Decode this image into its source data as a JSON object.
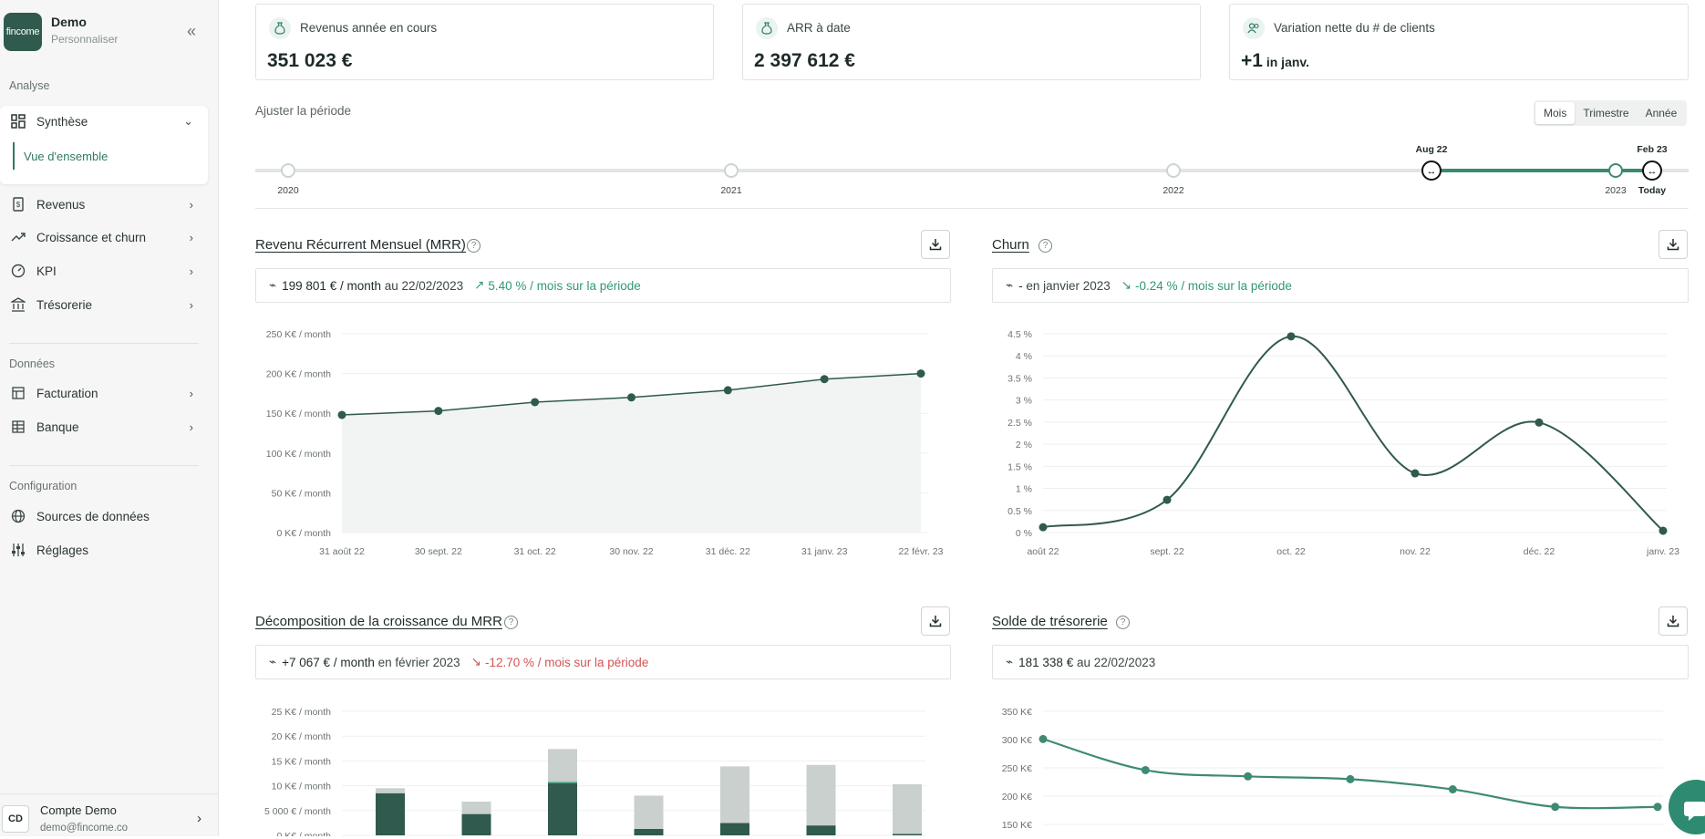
{
  "sidebar": {
    "logo_text": "fincome",
    "company": "Demo",
    "customize": "Personnaliser",
    "sections": {
      "analyse": "Analyse",
      "donnees": "Données",
      "configuration": "Configuration"
    },
    "items": {
      "synthese": "Synthèse",
      "vue_ensemble": "Vue d'ensemble",
      "revenus": "Revenus",
      "croissance": "Croissance et churn",
      "kpi": "KPI",
      "tresorerie": "Trésorerie",
      "facturation": "Facturation",
      "banque": "Banque",
      "sources": "Sources de données",
      "reglages": "Réglages"
    },
    "account": {
      "initials": "CD",
      "name": "Compte Demo",
      "email": "demo@fincome.co"
    }
  },
  "kpis": [
    {
      "label": "Revenus année en cours",
      "value": "351 023 €",
      "suffix": ""
    },
    {
      "label": "ARR à date",
      "value": "2 397 612 €",
      "suffix": ""
    },
    {
      "label": "Variation nette du # de clients",
      "value": "+1",
      "suffix": " in janv."
    }
  ],
  "period": {
    "label": "Ajuster la période",
    "granularity": [
      "Mois",
      "Trimestre",
      "Année"
    ],
    "selected": "Mois",
    "years": [
      "2020",
      "2021",
      "2022",
      "2023",
      "Today"
    ],
    "range_start": "Aug 22",
    "range_end": "Feb 23"
  },
  "panels": {
    "mrr": {
      "title": "Revenu Récurrent Mensuel (MRR)",
      "stat_value": "199 801 € / month",
      "stat_suffix": "au 22/02/2023",
      "stat_change": "5.40 % / mois sur la période"
    },
    "churn": {
      "title": "Churn",
      "stat_value": "-",
      "stat_suffix": "en janvier 2023",
      "stat_change": "-0.24 % / mois sur la période"
    },
    "decomp": {
      "title": "Décomposition de la croissance du MRR",
      "stat_value": "+7 067 € / month",
      "stat_suffix": "en février 2023",
      "stat_change": "-12.70 % / mois sur la période"
    },
    "cash": {
      "title": "Solde de trésorerie",
      "stat_value": "181 338 €",
      "stat_suffix": "au 22/02/2023"
    }
  },
  "chart_data": [
    {
      "type": "area",
      "categories": [
        "31 août 22",
        "30 sept. 22",
        "31 oct. 22",
        "30 nov. 22",
        "31 déc. 22",
        "31 janv. 23",
        "22 févr. 23"
      ],
      "values": [
        148000,
        153000,
        164000,
        170000,
        179000,
        193000,
        200000
      ],
      "yticks": [
        "0 K€ / month",
        "50 K€ / month",
        "100 K€ / month",
        "150 K€ / month",
        "200 K€ / month",
        "250 K€ / month"
      ],
      "ylim": [
        0,
        250000
      ],
      "color": "#2f5a4d"
    },
    {
      "type": "line",
      "categories": [
        "août 22",
        "sept. 22",
        "oct. 22",
        "nov. 22",
        "déc. 22",
        "janv. 23"
      ],
      "values": [
        0.08,
        0.7,
        4.4,
        1.3,
        2.45,
        0.0
      ],
      "yticks": [
        "0 %",
        "0.5 %",
        "1 %",
        "1.5 %",
        "2 %",
        "2.5 %",
        "3 %",
        "3.5 %",
        "4 %",
        "4.5 %"
      ],
      "ylim": [
        0,
        4.5
      ],
      "color": "#2f5a4d"
    },
    {
      "type": "bar",
      "yticks": [
        "0 K€ / month",
        "5 000 € / month",
        "10 K€ / month",
        "15 K€ / month",
        "20 K€ / month",
        "25 K€ / month"
      ],
      "ylim": [
        0,
        25000
      ],
      "series": [
        {
          "values": [
            8500,
            4300,
            10500,
            1300,
            2500,
            2000,
            300
          ],
          "color": "#2f5a4d"
        },
        {
          "values": [
            0,
            0,
            300,
            0,
            0,
            0,
            0
          ],
          "color": "#3f9b7e"
        },
        {
          "values": [
            0,
            0,
            0,
            0,
            0,
            0,
            0
          ],
          "color": "#5fae95"
        },
        {
          "values": [
            1000,
            2500,
            6600,
            6700,
            11400,
            12200,
            10000
          ],
          "color": "#c9d0ce"
        }
      ],
      "colors": [
        "#2f5a4d",
        "#3f9b7e",
        "#c9d0ce"
      ]
    },
    {
      "type": "line",
      "categories": [
        "",
        "",
        "",
        "",
        "",
        "",
        ""
      ],
      "values": [
        301000,
        246000,
        235000,
        230000,
        212000,
        181000,
        181000
      ],
      "yticks": [
        "150 K€",
        "200 K€",
        "250 K€",
        "300 K€",
        "350 K€"
      ],
      "ylim": [
        150000,
        350000
      ],
      "color": "#3f8a75"
    }
  ]
}
